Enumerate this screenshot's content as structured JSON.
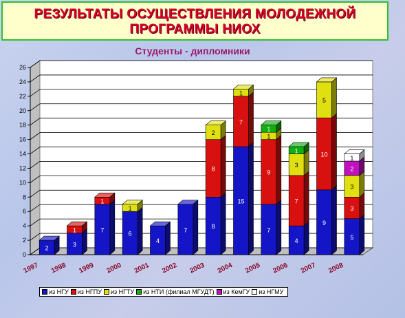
{
  "title_line1": "РЕЗУЛЬТАТЫ ОСУЩЕСТВЛЕНИЯ МОЛОДЕЖНОЙ",
  "title_line2": "ПРОГРАММЫ НИОХ",
  "chart_data": {
    "type": "bar",
    "stacked": true,
    "title": "Студенты - дипломники",
    "categories": [
      "1997",
      "1998",
      "1999",
      "2000",
      "2001",
      "2002",
      "2003",
      "2004",
      "2005",
      "2006",
      "2007",
      "2008"
    ],
    "ylim": [
      0,
      26
    ],
    "yticks": [
      0,
      2,
      4,
      6,
      8,
      10,
      12,
      14,
      16,
      18,
      20,
      22,
      24,
      26
    ],
    "grid": true,
    "legend_position": "bottom",
    "series": [
      {
        "name": "из НГУ",
        "color": "#1515c8",
        "values": [
          2,
          3,
          7,
          6,
          4,
          7,
          8,
          15,
          7,
          4,
          9,
          5
        ]
      },
      {
        "name": "из НГПУ",
        "color": "#d81010",
        "values": [
          0,
          1,
          1,
          0,
          0,
          0,
          8,
          7,
          9,
          7,
          10,
          3
        ]
      },
      {
        "name": "из НГТУ",
        "color": "#e0e010",
        "values": [
          0,
          0,
          0,
          1,
          0,
          0,
          2,
          1,
          1,
          3,
          5,
          3
        ]
      },
      {
        "name": "из НТИ (филиал МГУДТ)",
        "color": "#10b010",
        "values": [
          0,
          0,
          0,
          0,
          0,
          0,
          0,
          0,
          1,
          1,
          0,
          0
        ]
      },
      {
        "name": "из КемГУ",
        "color": "#c010c0",
        "values": [
          0,
          0,
          0,
          0,
          0,
          0,
          0,
          0,
          0,
          0,
          0,
          2
        ]
      },
      {
        "name": "из НГМУ",
        "color": "#ffffff",
        "values": [
          0,
          0,
          0,
          0,
          0,
          0,
          0,
          0,
          0,
          0,
          0,
          1
        ]
      }
    ]
  }
}
